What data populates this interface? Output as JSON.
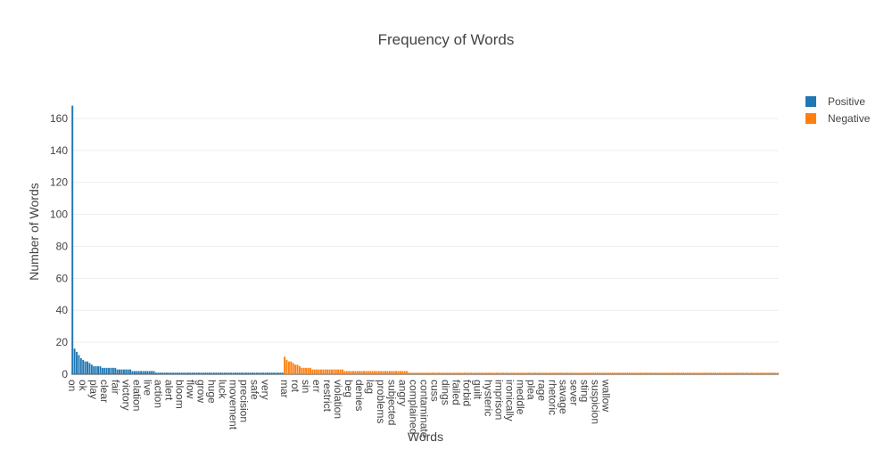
{
  "chart_data": {
    "type": "bar",
    "title": "Frequency of Words",
    "xlabel": "Words",
    "ylabel": "Number of Words",
    "ylim": [
      0,
      170
    ],
    "yticks": [
      0,
      20,
      40,
      60,
      80,
      100,
      120,
      140,
      160
    ],
    "grid": true,
    "legend_position": "top-right",
    "series": [
      {
        "name": "Positive",
        "color": "#1f77b4",
        "values": [
          168,
          16,
          14,
          12,
          10,
          9,
          8,
          8,
          7,
          6,
          5,
          5,
          5,
          5,
          4,
          4,
          4,
          4,
          4,
          4,
          4,
          3,
          3,
          3,
          3,
          3,
          3,
          3,
          2,
          2,
          2,
          2,
          2,
          2,
          2,
          2,
          2,
          2,
          2,
          1,
          1,
          1,
          1,
          1,
          1,
          1,
          1,
          1,
          1,
          1,
          1,
          1,
          1,
          1,
          1,
          1,
          1,
          1,
          1,
          1,
          1,
          1,
          1,
          1,
          1,
          1,
          1,
          1,
          1,
          1,
          1,
          1,
          1,
          1,
          1,
          1,
          1,
          1,
          1,
          1,
          1,
          1,
          1,
          1,
          1,
          1,
          1,
          1,
          1,
          1,
          1,
          1,
          1,
          1,
          1,
          1,
          1,
          1,
          1
        ],
        "tick_labels": [
          {
            "i": 0,
            "label": "on"
          },
          {
            "i": 5,
            "label": "ok"
          },
          {
            "i": 10,
            "label": "play"
          },
          {
            "i": 15,
            "label": "clear"
          },
          {
            "i": 20,
            "label": "fair"
          },
          {
            "i": 25,
            "label": "victory"
          },
          {
            "i": 30,
            "label": "elation"
          },
          {
            "i": 35,
            "label": "live"
          },
          {
            "i": 40,
            "label": "action"
          },
          {
            "i": 45,
            "label": "alert"
          },
          {
            "i": 50,
            "label": "bloom"
          },
          {
            "i": 55,
            "label": "flow"
          },
          {
            "i": 60,
            "label": "grow"
          },
          {
            "i": 65,
            "label": "huge"
          },
          {
            "i": 70,
            "label": "luck"
          },
          {
            "i": 75,
            "label": "movement"
          },
          {
            "i": 80,
            "label": "precision"
          },
          {
            "i": 85,
            "label": "safe"
          },
          {
            "i": 90,
            "label": "very"
          }
        ]
      },
      {
        "name": "Negative",
        "color": "#ff7f0e",
        "values": [
          11,
          9,
          8,
          8,
          7,
          6,
          6,
          5,
          4,
          4,
          4,
          4,
          4,
          3,
          3,
          3,
          3,
          3,
          3,
          3,
          3,
          3,
          3,
          3,
          3,
          3,
          3,
          3,
          2,
          2,
          2,
          2,
          2,
          2,
          2,
          2,
          2,
          2,
          2,
          2,
          2,
          2,
          2,
          2,
          2,
          2,
          2,
          2,
          2,
          2,
          2,
          2,
          2,
          2,
          2,
          2,
          2,
          2,
          1,
          1,
          1,
          1,
          1,
          1,
          1,
          1,
          1,
          1,
          1,
          1,
          1,
          1,
          1,
          1,
          1,
          1,
          1,
          1,
          1,
          1,
          1,
          1,
          1,
          1,
          1,
          1,
          1,
          1,
          1,
          1,
          1,
          1,
          1,
          1,
          1,
          1,
          1,
          1,
          1,
          1,
          1,
          1,
          1,
          1,
          1,
          1,
          1,
          1,
          1,
          1,
          1,
          1,
          1,
          1,
          1,
          1,
          1,
          1,
          1,
          1,
          1,
          1,
          1,
          1,
          1,
          1,
          1,
          1,
          1,
          1,
          1,
          1,
          1,
          1,
          1,
          1,
          1,
          1,
          1,
          1,
          1,
          1,
          1,
          1,
          1,
          1,
          1,
          1,
          1,
          1,
          1,
          1,
          1,
          1,
          1,
          1,
          1,
          1,
          1,
          1,
          1,
          1,
          1,
          1,
          1,
          1,
          1,
          1,
          1,
          1,
          1,
          1,
          1,
          1,
          1,
          1,
          1,
          1,
          1,
          1,
          1,
          1,
          1,
          1,
          1,
          1,
          1,
          1,
          1,
          1,
          1,
          1,
          1,
          1,
          1,
          1,
          1,
          1,
          1,
          1,
          1,
          1,
          1,
          1,
          1,
          1,
          1,
          1,
          1,
          1,
          1,
          1,
          1,
          1,
          1,
          1,
          1,
          1,
          1,
          1,
          1,
          1,
          1,
          1,
          1,
          1,
          1,
          1,
          1,
          1,
          1
        ],
        "tick_labels": [
          {
            "i": 0,
            "label": "mar"
          },
          {
            "i": 5,
            "label": "rot"
          },
          {
            "i": 10,
            "label": "sin"
          },
          {
            "i": 15,
            "label": "err"
          },
          {
            "i": 20,
            "label": "restrict"
          },
          {
            "i": 25,
            "label": "violation"
          },
          {
            "i": 30,
            "label": "beg"
          },
          {
            "i": 35,
            "label": "denies"
          },
          {
            "i": 40,
            "label": "lag"
          },
          {
            "i": 45,
            "label": "problems"
          },
          {
            "i": 50,
            "label": "subjected"
          },
          {
            "i": 55,
            "label": "angry"
          },
          {
            "i": 60,
            "label": "complained"
          },
          {
            "i": 65,
            "label": "contaminate"
          },
          {
            "i": 70,
            "label": "cuss"
          },
          {
            "i": 75,
            "label": "dings"
          },
          {
            "i": 80,
            "label": "failed"
          },
          {
            "i": 85,
            "label": "forbid"
          },
          {
            "i": 90,
            "label": "guilt"
          },
          {
            "i": 95,
            "label": "hysteric"
          },
          {
            "i": 100,
            "label": "imprison"
          },
          {
            "i": 105,
            "label": "ironically"
          },
          {
            "i": 110,
            "label": "meddle"
          },
          {
            "i": 115,
            "label": "plea"
          },
          {
            "i": 120,
            "label": "rage"
          },
          {
            "i": 125,
            "label": "rhetoric"
          },
          {
            "i": 130,
            "label": "savage"
          },
          {
            "i": 135,
            "label": "sever"
          },
          {
            "i": 140,
            "label": "sting"
          },
          {
            "i": 145,
            "label": "suspicion"
          },
          {
            "i": 150,
            "label": "wallow"
          }
        ]
      }
    ]
  }
}
